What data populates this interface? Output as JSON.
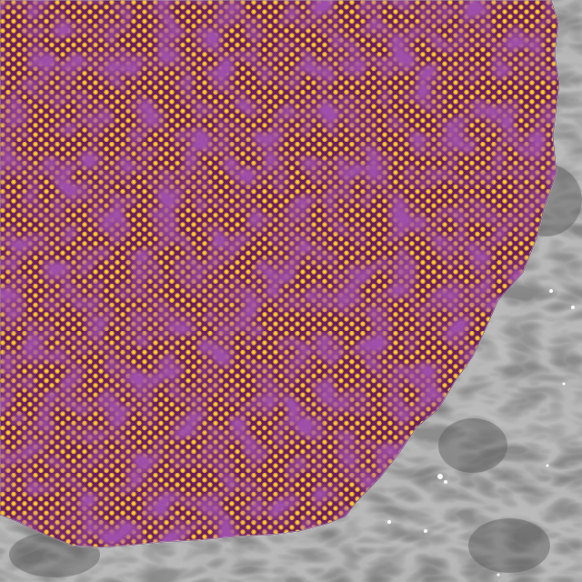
{
  "image": {
    "kind": "false-color microscopy scan",
    "colors": {
      "background_gray": "#7a7a7a",
      "background_dark": "#5a5a5a",
      "background_light": "#9a9a9a",
      "stripe_highlight": "#b5b5b5",
      "lattice_dark": "#5a1a6a",
      "lattice_mid": "#b03a3a",
      "lattice_light": "#f0b020",
      "lattice_bright": "#ffd030",
      "edge_outline": "#ffffff",
      "specks": "#ffffff"
    }
  }
}
